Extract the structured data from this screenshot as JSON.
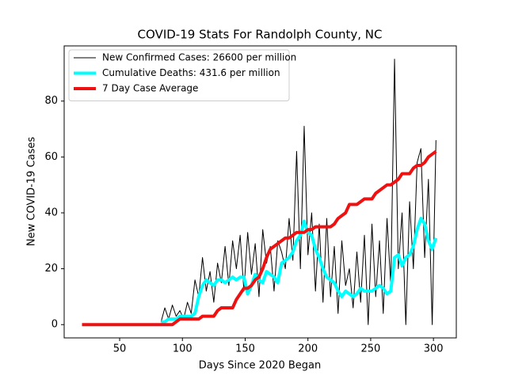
{
  "chart_data": {
    "type": "line",
    "title": "COVID-19 Stats For Randolph County, NC",
    "xlabel": "Days Since 2020 Began",
    "ylabel": "New COVID-19 Cases",
    "x": [
      20,
      23,
      26,
      29,
      32,
      35,
      38,
      41,
      44,
      47,
      50,
      53,
      56,
      59,
      62,
      65,
      68,
      71,
      74,
      77,
      80,
      83,
      86,
      89,
      92,
      95,
      98,
      101,
      104,
      107,
      110,
      113,
      116,
      119,
      122,
      125,
      128,
      131,
      134,
      137,
      140,
      143,
      146,
      149,
      152,
      155,
      158,
      161,
      164,
      167,
      170,
      173,
      176,
      179,
      182,
      185,
      188,
      191,
      194,
      197,
      200,
      203,
      206,
      209,
      212,
      215,
      218,
      221,
      224,
      227,
      230,
      233,
      236,
      239,
      242,
      245,
      248,
      251,
      254,
      257,
      260,
      263,
      266,
      269,
      272,
      275,
      278,
      281,
      284,
      287,
      290,
      293,
      296,
      299,
      302
    ],
    "series": [
      {
        "name": "New Confirmed Cases: 26600 per million",
        "color": "#000000",
        "width": 1,
        "values": [
          null,
          null,
          null,
          null,
          null,
          null,
          null,
          null,
          null,
          null,
          null,
          null,
          null,
          null,
          null,
          null,
          null,
          null,
          null,
          null,
          null,
          1,
          6,
          2,
          7,
          3,
          5,
          2,
          8,
          4,
          16,
          10,
          24,
          12,
          19,
          8,
          22,
          15,
          28,
          14,
          30,
          20,
          32,
          12,
          33,
          18,
          29,
          10,
          34,
          22,
          28,
          12,
          30,
          26,
          20,
          38,
          23,
          62,
          20,
          71,
          25,
          40,
          12,
          36,
          8,
          38,
          10,
          28,
          4,
          30,
          14,
          20,
          6,
          26,
          8,
          32,
          0,
          36,
          10,
          30,
          4,
          38,
          14,
          95,
          20,
          40,
          0,
          44,
          20,
          58,
          63,
          24,
          52,
          0,
          66
        ]
      },
      {
        "name": "Cumulative Deaths: 431.6 per million",
        "color": "#00ffff",
        "width": 4,
        "values": [
          null,
          null,
          null,
          null,
          null,
          null,
          null,
          null,
          null,
          null,
          null,
          null,
          null,
          null,
          null,
          null,
          null,
          null,
          null,
          null,
          null,
          1,
          1,
          2,
          2,
          2,
          3,
          3,
          3,
          3,
          4,
          10,
          14,
          16,
          15,
          14,
          16,
          16,
          15,
          16,
          17,
          16,
          17,
          17,
          11,
          14,
          18,
          16,
          15,
          19,
          18,
          17,
          15,
          22,
          23,
          24,
          26,
          30,
          32,
          37,
          33,
          32,
          27,
          24,
          20,
          17,
          16,
          15,
          12,
          10,
          12,
          11,
          10,
          11,
          13,
          12,
          12,
          12,
          13,
          14,
          13,
          11,
          12,
          24,
          25,
          21,
          24,
          25,
          28,
          34,
          38,
          36,
          30,
          27,
          31
        ]
      },
      {
        "name": "7 Day Case Average",
        "color": "#ee1111",
        "width": 4,
        "values": [
          0,
          0,
          0,
          0,
          0,
          0,
          0,
          0,
          0,
          0,
          0,
          0,
          0,
          0,
          0,
          0,
          0,
          0,
          0,
          0,
          0,
          0,
          0,
          0,
          0,
          1,
          2,
          2,
          2,
          2,
          2,
          2,
          3,
          3,
          3,
          3,
          5,
          6,
          6,
          6,
          6,
          9,
          11,
          13,
          13,
          14,
          16,
          17,
          20,
          24,
          27,
          28,
          29,
          30,
          31,
          31,
          32,
          33,
          33,
          33,
          34,
          34,
          35,
          35,
          35,
          35,
          35,
          36,
          38,
          39,
          40,
          43,
          43,
          43,
          44,
          45,
          45,
          45,
          47,
          48,
          49,
          50,
          50,
          51,
          52,
          54,
          54,
          54,
          56,
          57,
          57,
          58,
          60,
          61,
          62
        ]
      }
    ],
    "xlim": [
      5.8,
      318.2
    ],
    "xticks": [
      50,
      100,
      150,
      200,
      250,
      300
    ],
    "ylim": [
      -4.75,
      99.75
    ],
    "yticks": [
      0,
      20,
      40,
      60,
      80
    ],
    "legend": "upper-left"
  }
}
